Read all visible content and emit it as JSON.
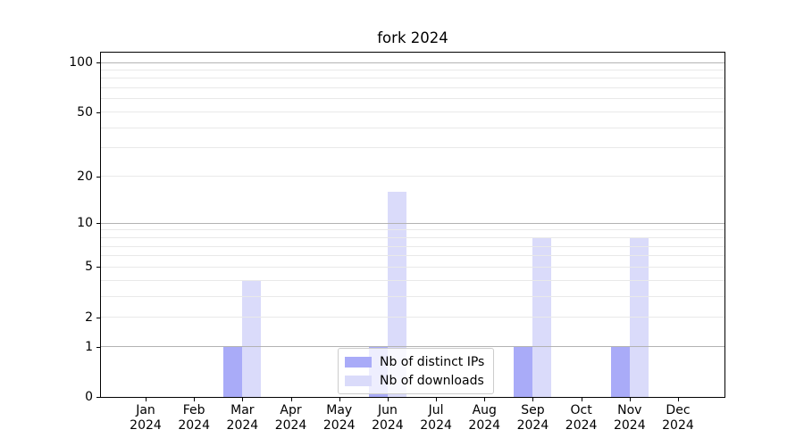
{
  "chart_data": {
    "type": "bar",
    "title": "fork 2024",
    "categories": [
      "Jan 2024",
      "Feb 2024",
      "Mar 2024",
      "Apr 2024",
      "May 2024",
      "Jun 2024",
      "Jul 2024",
      "Aug 2024",
      "Sep 2024",
      "Oct 2024",
      "Nov 2024",
      "Dec 2024"
    ],
    "series": [
      {
        "name": "Nb of distinct IPs",
        "color": "#a9abf8",
        "values": [
          0,
          0,
          1,
          0,
          0,
          1,
          0,
          0,
          1,
          0,
          1,
          0
        ]
      },
      {
        "name": "Nb of downloads",
        "color": "#dadbfa",
        "values": [
          0,
          0,
          4,
          0,
          0,
          16,
          0,
          0,
          8,
          0,
          8,
          0
        ]
      }
    ],
    "yscale": "log1p",
    "ylim": [
      0,
      115
    ],
    "yticks": [
      0,
      1,
      2,
      5,
      10,
      20,
      50,
      100
    ],
    "grid": {
      "major_values": [
        1,
        10,
        100
      ],
      "minor_values": [
        2,
        3,
        4,
        5,
        6,
        7,
        8,
        9,
        20,
        30,
        40,
        50,
        60,
        70,
        80,
        90
      ],
      "major_color": "#b3b3b3",
      "minor_color": "#e9e9e9"
    },
    "legend_position": "lower-center",
    "background": "#ffffff"
  }
}
